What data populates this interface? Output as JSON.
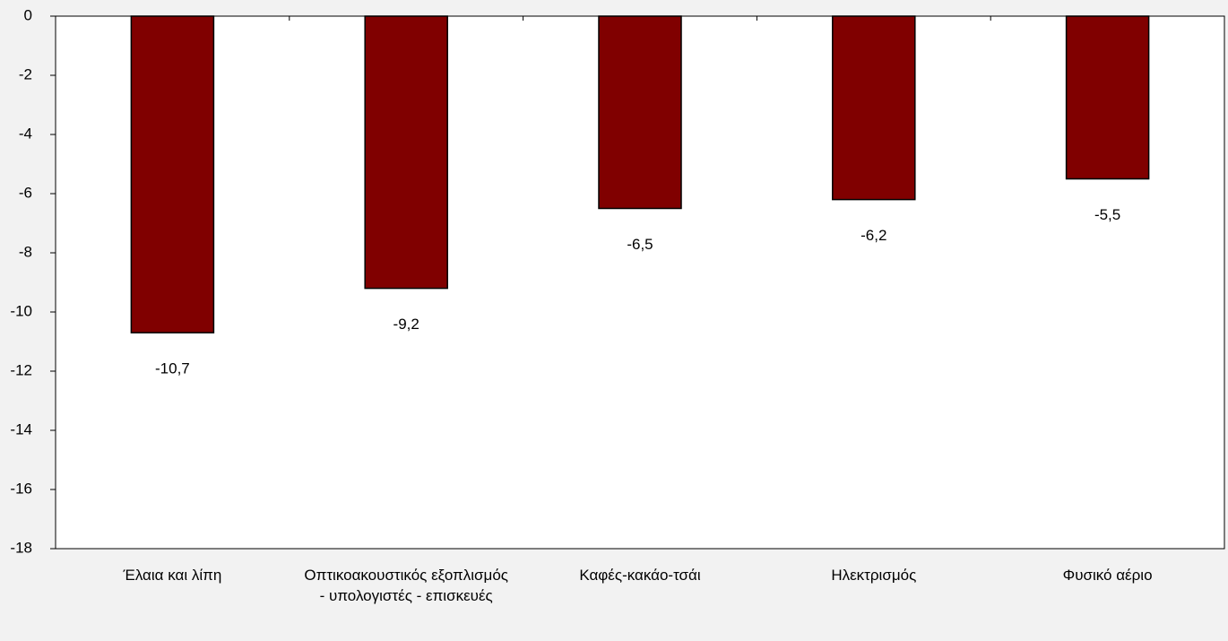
{
  "chart_data": {
    "type": "bar",
    "categories": [
      "Έλαια και λίπη",
      "Οπτικοακουστικός εξοπλισμός - υπολογιστές - επισκευές",
      "Καφές-κακάο-τσάι",
      "Ηλεκτρισμός",
      "Φυσικό αέριο"
    ],
    "values": [
      -10.7,
      -9.2,
      -6.5,
      -6.2,
      -5.5
    ],
    "value_labels": [
      "-10,7",
      "-9,2",
      "-6,5",
      "-6,2",
      "-5,5"
    ],
    "color": "#800000",
    "ylim": [
      -18,
      0
    ],
    "yticks": [
      0,
      -2,
      -4,
      -6,
      -8,
      -10,
      -12,
      -14,
      -16,
      -18
    ]
  }
}
